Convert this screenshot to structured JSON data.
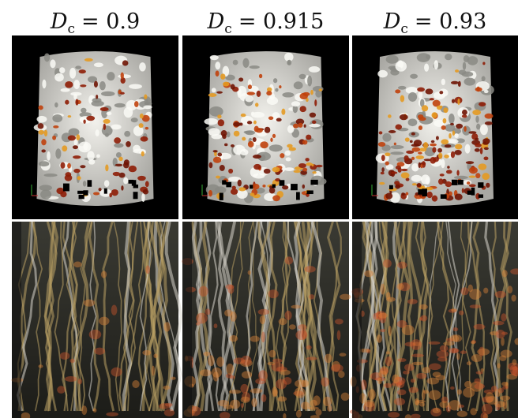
{
  "panels": [
    {
      "symbol": "D",
      "subscript": "c",
      "value": "= 0.9"
    },
    {
      "symbol": "D",
      "subscript": "c",
      "value": "= 0.915"
    },
    {
      "symbol": "D",
      "subscript": "c",
      "value": "= 0.93"
    }
  ]
}
